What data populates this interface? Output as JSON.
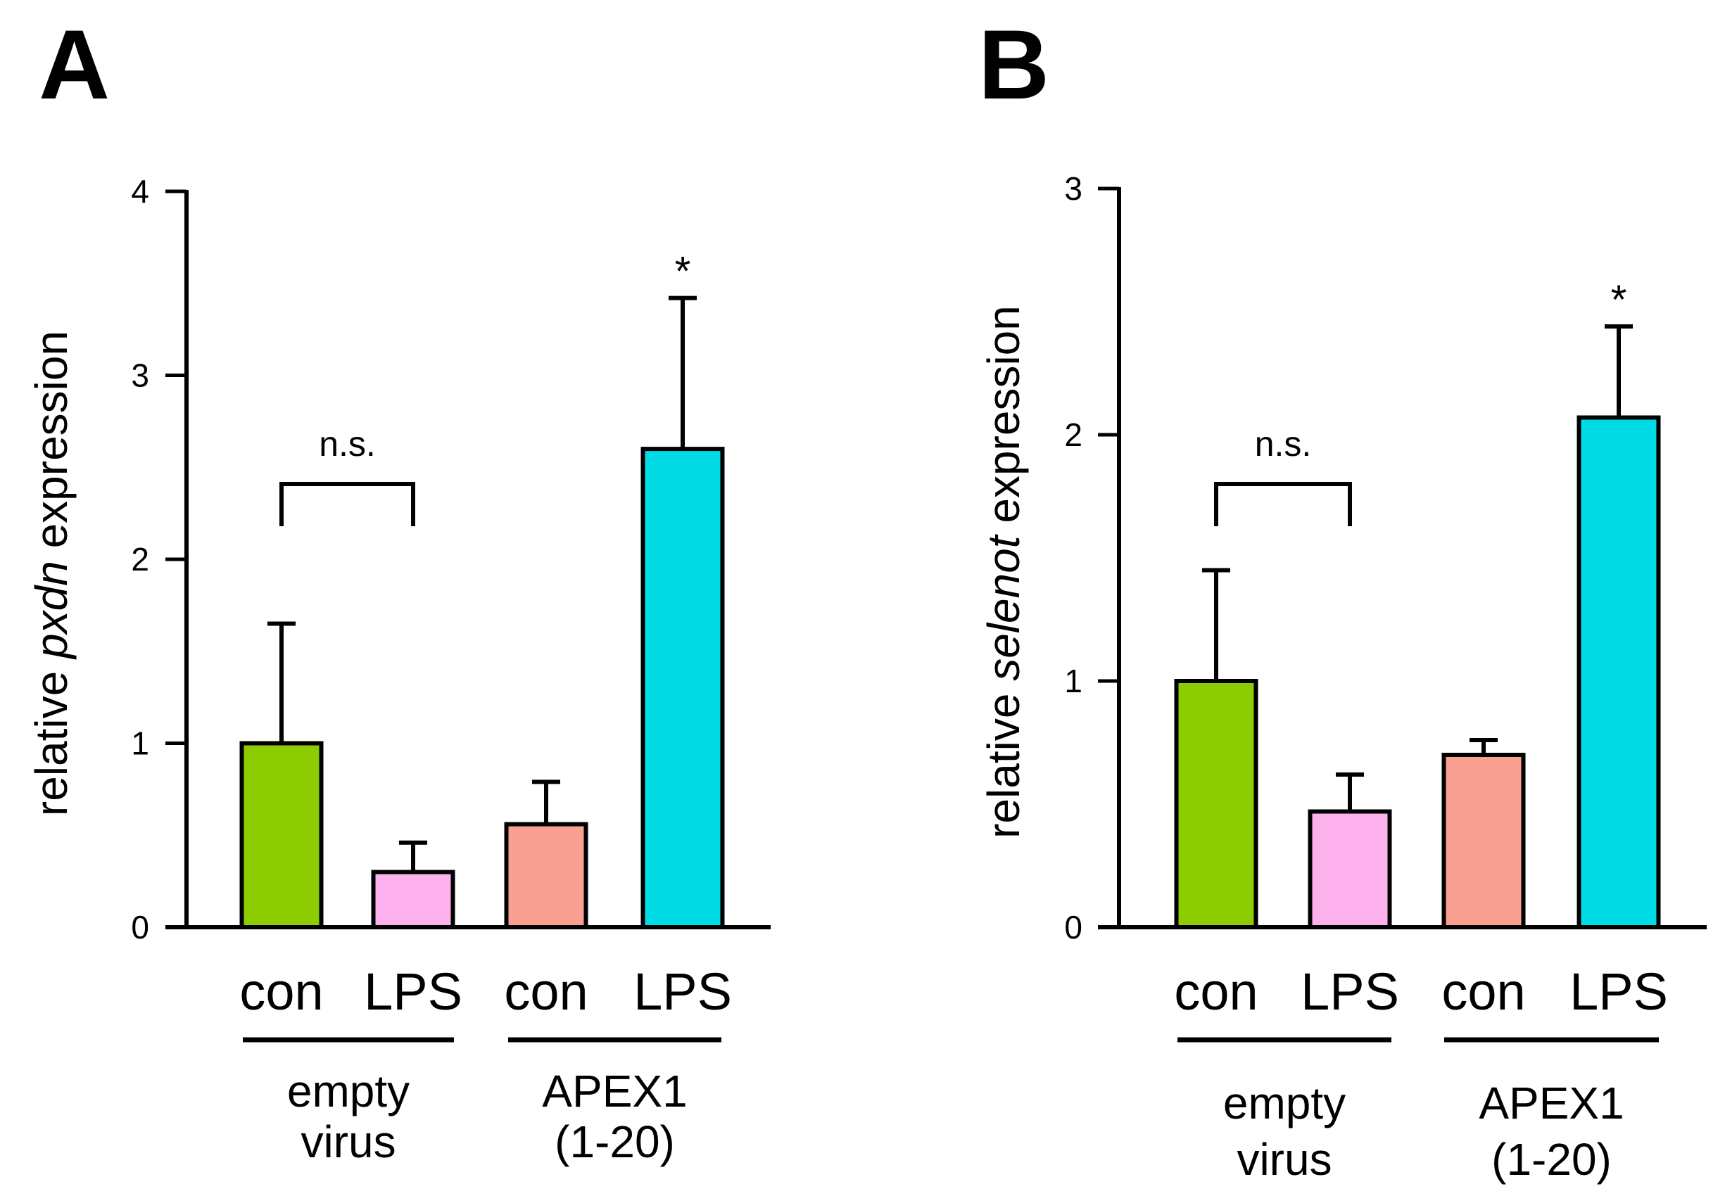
{
  "chart_data": [
    {
      "type": "bar",
      "panel": "A",
      "ylabel_parts": [
        "relative ",
        "pxdn",
        " expression"
      ],
      "ylim": [
        0,
        4
      ],
      "yticks": [
        0,
        1,
        2,
        3,
        4
      ],
      "categories": [
        "con",
        "LPS",
        "con",
        "LPS"
      ],
      "values": [
        1.0,
        0.3,
        0.56,
        2.6
      ],
      "errors": [
        0.65,
        0.16,
        0.23,
        0.82
      ],
      "colors": [
        "#8ccc00",
        "#fcb0ec",
        "#f9a092",
        "#00dbe5"
      ],
      "groups": [
        {
          "lines": [
            "empty",
            "virus"
          ],
          "bars": [
            0,
            1
          ]
        },
        {
          "lines": [
            "APEX1",
            "(1-20)"
          ],
          "bars": [
            2,
            3
          ]
        }
      ],
      "bracket": {
        "from": 0,
        "to": 1,
        "label": "n.s."
      },
      "significance": {
        "bar": 3,
        "label": "*"
      }
    },
    {
      "type": "bar",
      "panel": "B",
      "ylabel_parts": [
        "relative ",
        "selenot",
        " expression"
      ],
      "ylim": [
        0,
        3
      ],
      "yticks": [
        0,
        1,
        2,
        3
      ],
      "categories": [
        "con",
        "LPS",
        "con",
        "LPS"
      ],
      "values": [
        1.0,
        0.47,
        0.7,
        2.07
      ],
      "errors": [
        0.45,
        0.15,
        0.06,
        0.37
      ],
      "colors": [
        "#8ccc00",
        "#fcb0ec",
        "#f9a092",
        "#00dbe5"
      ],
      "groups": [
        {
          "lines": [
            "empty",
            "virus"
          ],
          "bars": [
            0,
            1
          ]
        },
        {
          "lines": [
            "APEX1",
            "(1-20)"
          ],
          "bars": [
            2,
            3
          ]
        }
      ],
      "bracket": {
        "from": 0,
        "to": 1,
        "label": "n.s."
      },
      "significance": {
        "bar": 3,
        "label": "*"
      }
    }
  ]
}
